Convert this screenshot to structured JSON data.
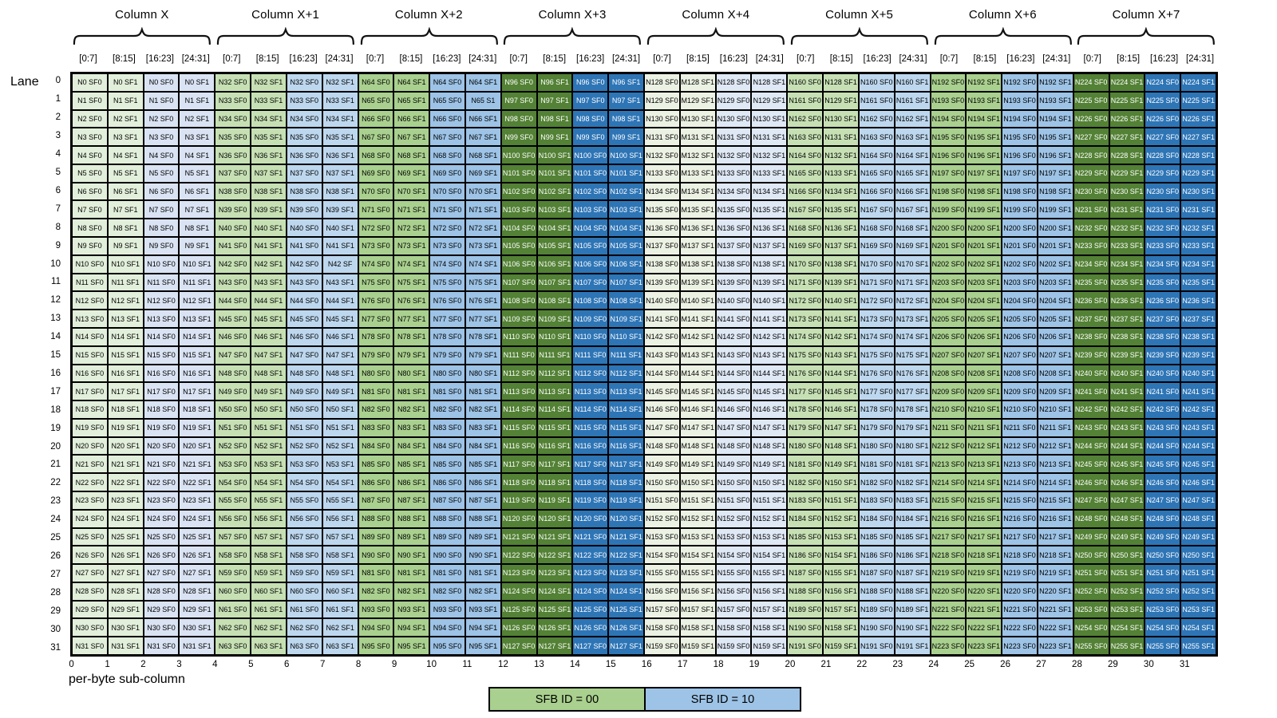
{
  "lane_axis": {
    "label": "Lane",
    "numbers": [
      0,
      1,
      2,
      3,
      4,
      5,
      6,
      7,
      8,
      9,
      10,
      11,
      12,
      13,
      14,
      15,
      16,
      17,
      18,
      19,
      20,
      21,
      22,
      23,
      24,
      25,
      26,
      27,
      28,
      29,
      30,
      31
    ]
  },
  "byte_axis": {
    "label": "per-byte sub-column",
    "numbers": [
      0,
      1,
      2,
      3,
      4,
      5,
      6,
      7,
      8,
      9,
      10,
      11,
      12,
      13,
      14,
      15,
      16,
      17,
      18,
      19,
      20,
      21,
      22,
      23,
      24,
      25,
      26,
      27,
      28,
      29,
      30,
      31
    ]
  },
  "columns": {
    "titles": [
      "Column X",
      "Column X+1",
      "Column X+2",
      "Column X+3",
      "Column X+4",
      "Column X+5",
      "Column X+6",
      "Column X+7"
    ],
    "subheaders": [
      "[0:7]",
      "[8:15]",
      "[16:23]",
      "[24:31]"
    ]
  },
  "grid": {
    "rows": 32,
    "n_prefix": "N",
    "suffixes": [
      "SF0",
      "SF1",
      "SF0",
      "SF1"
    ],
    "groups": [
      {
        "title": "Column X",
        "base": 0,
        "sf1_base": 0,
        "sf1_prefix": "N",
        "green": "#e2efda",
        "blue": "#dae3f3",
        "text_color": "#000000"
      },
      {
        "title": "Column X+1",
        "base": 32,
        "sf1_base": 32,
        "sf1_prefix": "N",
        "green": "#c6e0b4",
        "blue": "#bdd7ee",
        "text_color": "#000000"
      },
      {
        "title": "Column X+2",
        "base": 64,
        "sf1_base": 64,
        "sf1_prefix": "N",
        "green": "#a9d08e",
        "blue": "#9dc3e6",
        "text_color": "#000000"
      },
      {
        "title": "Column X+3",
        "base": 96,
        "sf1_base": 96,
        "sf1_prefix": "N",
        "green": "#538135",
        "blue": "#2e75b6",
        "text_color": "#ffffff"
      },
      {
        "title": "Column X+4",
        "base": 128,
        "sf1_base": 128,
        "sf1_prefix": "M",
        "green": "#ecf2e3",
        "blue": "#dfe8f5",
        "text_color": "#000000"
      },
      {
        "title": "Column X+5",
        "base": 160,
        "sf1_base": 128,
        "sf1_prefix": "N",
        "green": "#c6e0b4",
        "blue": "#bdd7ee",
        "text_color": "#000000"
      },
      {
        "title": "Column X+6",
        "base": 192,
        "sf1_base": 192,
        "sf1_prefix": "N",
        "green": "#a9d08e",
        "blue": "#9dc3e6",
        "text_color": "#000000"
      },
      {
        "title": "Column X+7",
        "base": 224,
        "sf1_base": 224,
        "sf1_prefix": "N",
        "green": "#538135",
        "blue": "#2e75b6",
        "text_color": "#ffffff"
      }
    ],
    "row_overrides": [
      {
        "group": 2,
        "row": 27,
        "n": 81
      },
      {
        "group": 2,
        "row": 28,
        "n": 82
      }
    ],
    "cell_overrides": [
      {
        "row": 1,
        "col": 11,
        "text": "N65 S1"
      },
      {
        "row": 10,
        "col": 7,
        "text": "N42 SF"
      }
    ]
  },
  "legend": {
    "items": [
      {
        "label": "SFB ID = 00",
        "color": "#a9d08e"
      },
      {
        "label": "SFB ID = 10",
        "color": "#9dc3e6"
      }
    ]
  },
  "style": {
    "border_color": "#000000",
    "brace_color": "#111111"
  }
}
